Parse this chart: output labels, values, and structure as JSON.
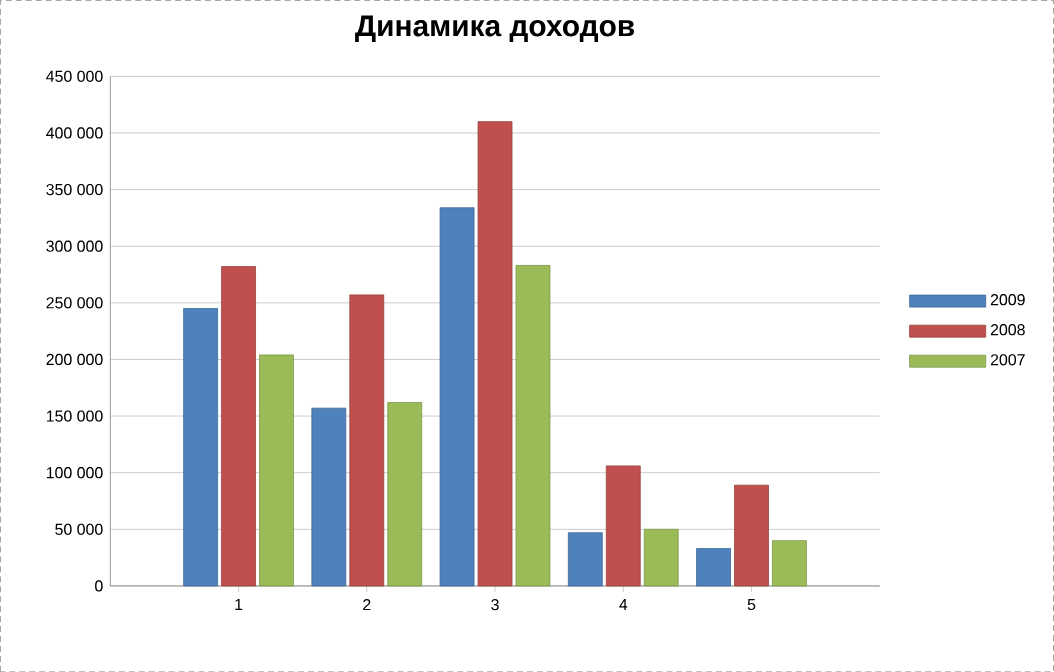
{
  "chart_data": {
    "type": "bar",
    "title": "Динамика доходов",
    "categories": [
      "1",
      "2",
      "3",
      "4",
      "5"
    ],
    "series": [
      {
        "name": "2009",
        "color": "#4f81bd",
        "values": [
          245000,
          157000,
          334000,
          47000,
          33000
        ]
      },
      {
        "name": "2008",
        "color": "#c0504d",
        "values": [
          282000,
          257000,
          410000,
          106000,
          89000
        ]
      },
      {
        "name": "2007",
        "color": "#9bbb59",
        "values": [
          204000,
          162000,
          283000,
          50000,
          40000
        ]
      }
    ],
    "ylim": [
      0,
      450000
    ],
    "yticks": [
      0,
      {
        "value": 50000,
        "label": "50 000"
      },
      {
        "value": 100000,
        "label": "100 000"
      },
      {
        "value": 150000,
        "label": "150 000"
      },
      {
        "value": 200000,
        "label": "200 000"
      },
      {
        "value": 250000,
        "label": "250 000"
      },
      {
        "value": 300000,
        "label": "300 000"
      },
      {
        "value": 350000,
        "label": "350 000"
      },
      {
        "value": 400000,
        "label": "400 000"
      },
      {
        "value": 450000,
        "label": "450 000"
      }
    ],
    "grid": "y",
    "legend": "right"
  }
}
